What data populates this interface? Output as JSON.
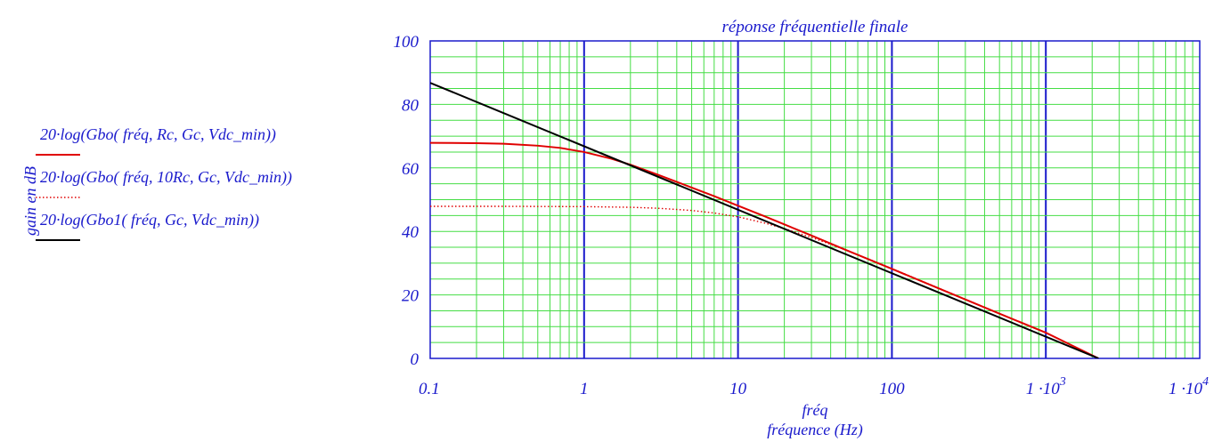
{
  "chart_data": {
    "type": "line",
    "title": "réponse fréquentielle finale",
    "xlabel_var": "fréq",
    "xlabel": "fréquence (Hz)",
    "ylabel": "gain en dB",
    "x_scale": "log",
    "xlim": [
      0.1,
      10000
    ],
    "ylim": [
      0,
      100
    ],
    "grid": true,
    "legend_position": "left",
    "x_ticks": [
      {
        "value": 0.1,
        "base": "0.1",
        "exp": ""
      },
      {
        "value": 1,
        "base": "1",
        "exp": ""
      },
      {
        "value": 10,
        "base": "10",
        "exp": ""
      },
      {
        "value": 100,
        "base": "100",
        "exp": ""
      },
      {
        "value": 1000,
        "base": "1 ·10",
        "exp": "3"
      },
      {
        "value": 10000,
        "base": "1 ·10",
        "exp": "4"
      }
    ],
    "y_ticks": [
      {
        "value": 0,
        "label": "0"
      },
      {
        "value": 20,
        "label": "20"
      },
      {
        "value": 40,
        "label": "40"
      },
      {
        "value": 60,
        "label": "60"
      },
      {
        "value": 80,
        "label": "80"
      },
      {
        "value": 100,
        "label": "100"
      }
    ],
    "series": [
      {
        "name": "20·log(Gbo( fréq, Rc, Gc, Vdc_min))",
        "color": "#e00000",
        "style": "solid",
        "x": [
          0.1,
          0.2,
          0.3,
          0.5,
          0.7,
          1,
          1.5,
          2,
          3,
          5,
          7,
          10,
          15,
          20,
          30,
          50,
          100,
          200,
          500,
          1000,
          2200
        ],
        "y": [
          67.9,
          67.8,
          67.6,
          67.0,
          66.3,
          65.0,
          62.9,
          61.0,
          57.9,
          53.8,
          51.1,
          48.1,
          44.7,
          42.2,
          38.7,
          34.2,
          28.2,
          22.1,
          14.1,
          8.1,
          0
        ]
      },
      {
        "name": "20·log(Gbo( fréq, 10Rc, Gc, Vdc_min))",
        "color": "#e00000",
        "style": "dotted",
        "x": [
          0.1,
          0.3,
          1,
          2,
          3,
          5,
          7,
          10,
          15,
          20,
          30,
          50,
          100,
          200,
          500,
          1000,
          2200
        ],
        "y": [
          47.9,
          47.9,
          47.8,
          47.6,
          47.3,
          46.6,
          45.8,
          44.6,
          42.6,
          40.9,
          38.1,
          34.2,
          28.3,
          22.2,
          14.1,
          8.1,
          0
        ]
      },
      {
        "name": "20·log(Gbo1( fréq, Gc, Vdc_min))",
        "color": "#000000",
        "style": "solid",
        "x": [
          0.1,
          2200
        ],
        "y": [
          86.8,
          0
        ]
      }
    ]
  }
}
